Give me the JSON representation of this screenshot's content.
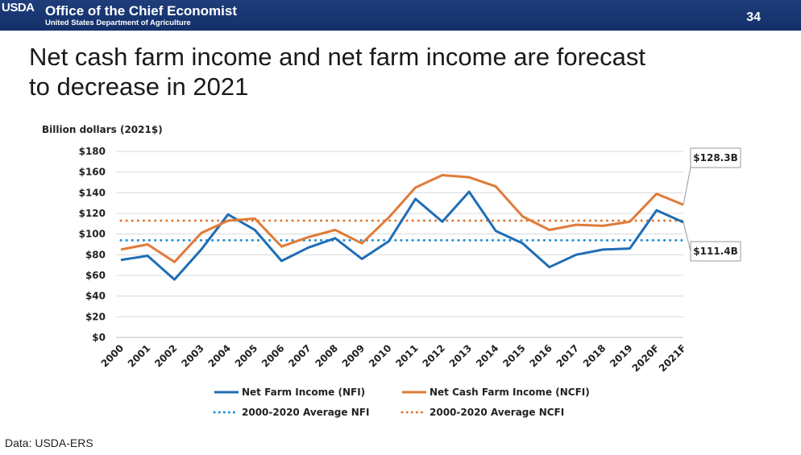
{
  "header": {
    "logo_text": "USDA",
    "office": "Office of the Chief Economist",
    "department": "United States Department of Agriculture",
    "page_number": "34"
  },
  "slide": {
    "title_line1": "Net cash farm income and net farm income are forecast",
    "title_line2": "to decrease in 2021",
    "source": "Data: USDA-ERS"
  },
  "chart_data": {
    "type": "line",
    "ylabel": "Billion dollars (2021$)",
    "ylim": [
      0,
      180
    ],
    "yticks": [
      0,
      20,
      40,
      60,
      80,
      100,
      120,
      140,
      160,
      180
    ],
    "ytick_labels": [
      "$0",
      "$20",
      "$40",
      "$60",
      "$80",
      "$100",
      "$120",
      "$140",
      "$160",
      "$180"
    ],
    "categories": [
      "2000",
      "2001",
      "2002",
      "2003",
      "2004",
      "2005",
      "2006",
      "2007",
      "2008",
      "2009",
      "2010",
      "2011",
      "2012",
      "2013",
      "2014",
      "2015",
      "2016",
      "2017",
      "2018",
      "2019",
      "2020F",
      "2021F"
    ],
    "grid": true,
    "legend_position": "bottom",
    "series": [
      {
        "name": "Net Farm Income (NFI)",
        "color": "#1f6db5",
        "style": "solid",
        "values": [
          75,
          79,
          56,
          85,
          119,
          104,
          74,
          87,
          96,
          76,
          93,
          134,
          112,
          141,
          103,
          91,
          68,
          80,
          85,
          86,
          123,
          111.4
        ]
      },
      {
        "name": "Net Cash Farm Income (NCFI)",
        "color": "#e07b39",
        "style": "solid",
        "values": [
          85,
          90,
          73,
          101,
          113,
          115,
          88,
          97,
          104,
          91,
          116,
          145,
          157,
          155,
          146,
          117,
          104,
          109,
          108,
          112,
          139,
          128.3
        ]
      },
      {
        "name": "2000-2020 Average NFI",
        "color": "#1f8fd6",
        "style": "dotted",
        "values": [
          94,
          94,
          94,
          94,
          94,
          94,
          94,
          94,
          94,
          94,
          94,
          94,
          94,
          94,
          94,
          94,
          94,
          94,
          94,
          94,
          94,
          94
        ]
      },
      {
        "name": "2000-2020 Average NCFI",
        "color": "#e07b39",
        "style": "dotted",
        "values": [
          113,
          113,
          113,
          113,
          113,
          113,
          113,
          113,
          113,
          113,
          113,
          113,
          113,
          113,
          113,
          113,
          113,
          113,
          113,
          113,
          113,
          113
        ]
      }
    ],
    "annotations": [
      {
        "text": "$128.3B",
        "series": 1,
        "point": 21,
        "placement": "above"
      },
      {
        "text": "$111.4B",
        "series": 0,
        "point": 21,
        "placement": "below"
      }
    ]
  }
}
